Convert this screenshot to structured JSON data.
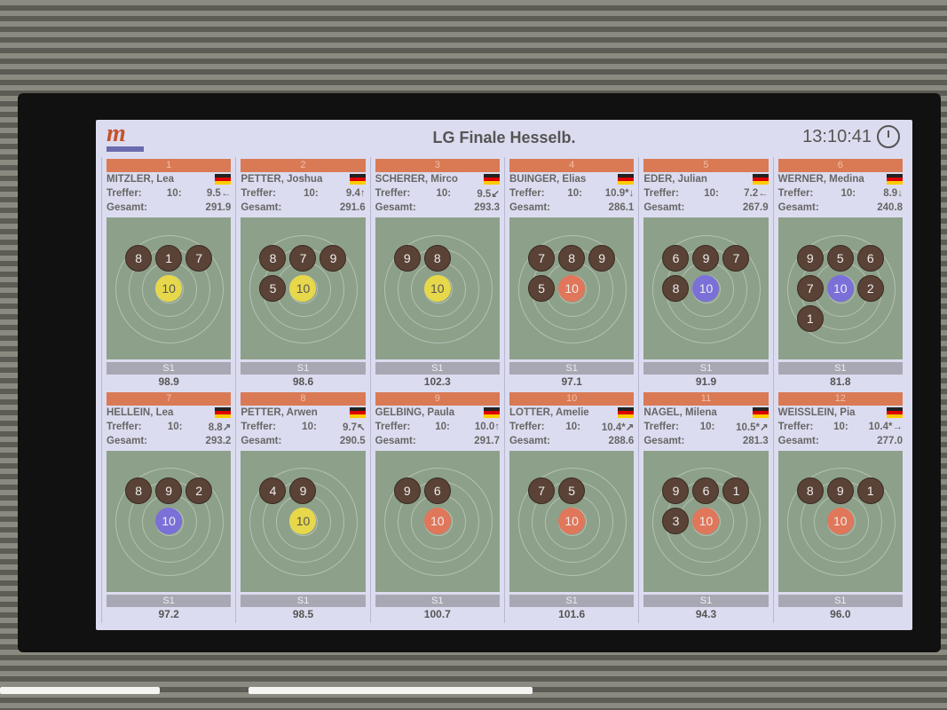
{
  "title": "LG Finale Hesselb.",
  "time": "13:10:41",
  "logo_text": "m",
  "labels": {
    "treffer": "Treffer:",
    "ten": "10:",
    "gesamt": "Gesamt:",
    "series": "S1"
  },
  "colors": {
    "rank_bar": "#d97a55",
    "yellow": "#e6d84a",
    "red": "#e0765a",
    "blue": "#7a70d8",
    "shot": "#5a4236",
    "target": "#8da08a"
  },
  "shooters": [
    {
      "rank": "1",
      "name": "MITZLER, Lea",
      "last": "9.5",
      "arrow": "←",
      "total": "291.9",
      "s1": "98.9",
      "shots": [
        "8",
        "1",
        "7",
        "10"
      ],
      "last_color": "yellow"
    },
    {
      "rank": "2",
      "name": "PETTER, Joshua",
      "last": "9.4",
      "arrow": "↑",
      "total": "291.6",
      "s1": "98.6",
      "shots": [
        "8",
        "7",
        "9",
        "5",
        "10"
      ],
      "last_color": "yellow"
    },
    {
      "rank": "3",
      "name": "SCHERER, Mirco",
      "last": "9.5",
      "arrow": "↙",
      "total": "293.3",
      "s1": "102.3",
      "shots": [
        "9",
        "8",
        "10"
      ],
      "last_color": "yellow"
    },
    {
      "rank": "4",
      "name": "BUINGER, Elias",
      "last": "10.9*",
      "arrow": "↓",
      "total": "286.1",
      "s1": "97.1",
      "shots": [
        "7",
        "8",
        "9",
        "5",
        "10"
      ],
      "last_color": "red"
    },
    {
      "rank": "5",
      "name": "EDER, Julian",
      "last": "7.2",
      "arrow": "←",
      "total": "267.9",
      "s1": "91.9",
      "shots": [
        "6",
        "9",
        "7",
        "8",
        "10"
      ],
      "last_color": "blue"
    },
    {
      "rank": "6",
      "name": "WERNER, Medina",
      "last": "8.9",
      "arrow": "↓",
      "total": "240.8",
      "s1": "81.8",
      "shots": [
        "9",
        "5",
        "6",
        "7",
        "2",
        "1",
        "10"
      ],
      "last_color": "blue"
    },
    {
      "rank": "7",
      "name": "HELLEIN, Lea",
      "last": "8.8",
      "arrow": "↗",
      "total": "293.2",
      "s1": "97.2",
      "shots": [
        "8",
        "9",
        "2",
        "10"
      ],
      "last_color": "blue"
    },
    {
      "rank": "8",
      "name": "PETTER, Arwen",
      "last": "9.7",
      "arrow": "↖",
      "total": "290.5",
      "s1": "98.5",
      "shots": [
        "4",
        "9",
        "10"
      ],
      "last_color": "yellow"
    },
    {
      "rank": "9",
      "name": "GELBING, Paula",
      "last": "10.0",
      "arrow": "↑",
      "total": "291.7",
      "s1": "100.7",
      "shots": [
        "9",
        "6",
        "10"
      ],
      "last_color": "red"
    },
    {
      "rank": "10",
      "name": "LOTTER, Amelie",
      "last": "10.4*",
      "arrow": "↗",
      "total": "288.6",
      "s1": "101.6",
      "shots": [
        "7",
        "5",
        "10"
      ],
      "last_color": "red"
    },
    {
      "rank": "11",
      "name": "NAGEL, Milena",
      "last": "10.5*",
      "arrow": "↗",
      "total": "281.3",
      "s1": "94.3",
      "shots": [
        "9",
        "6",
        "1",
        "3",
        "10"
      ],
      "last_color": "red"
    },
    {
      "rank": "12",
      "name": "WEISSLEIN, Pia",
      "last": "10.4*",
      "arrow": "→",
      "total": "277.0",
      "s1": "96.0",
      "shots": [
        "8",
        "9",
        "1",
        "10"
      ],
      "last_color": "red"
    }
  ]
}
